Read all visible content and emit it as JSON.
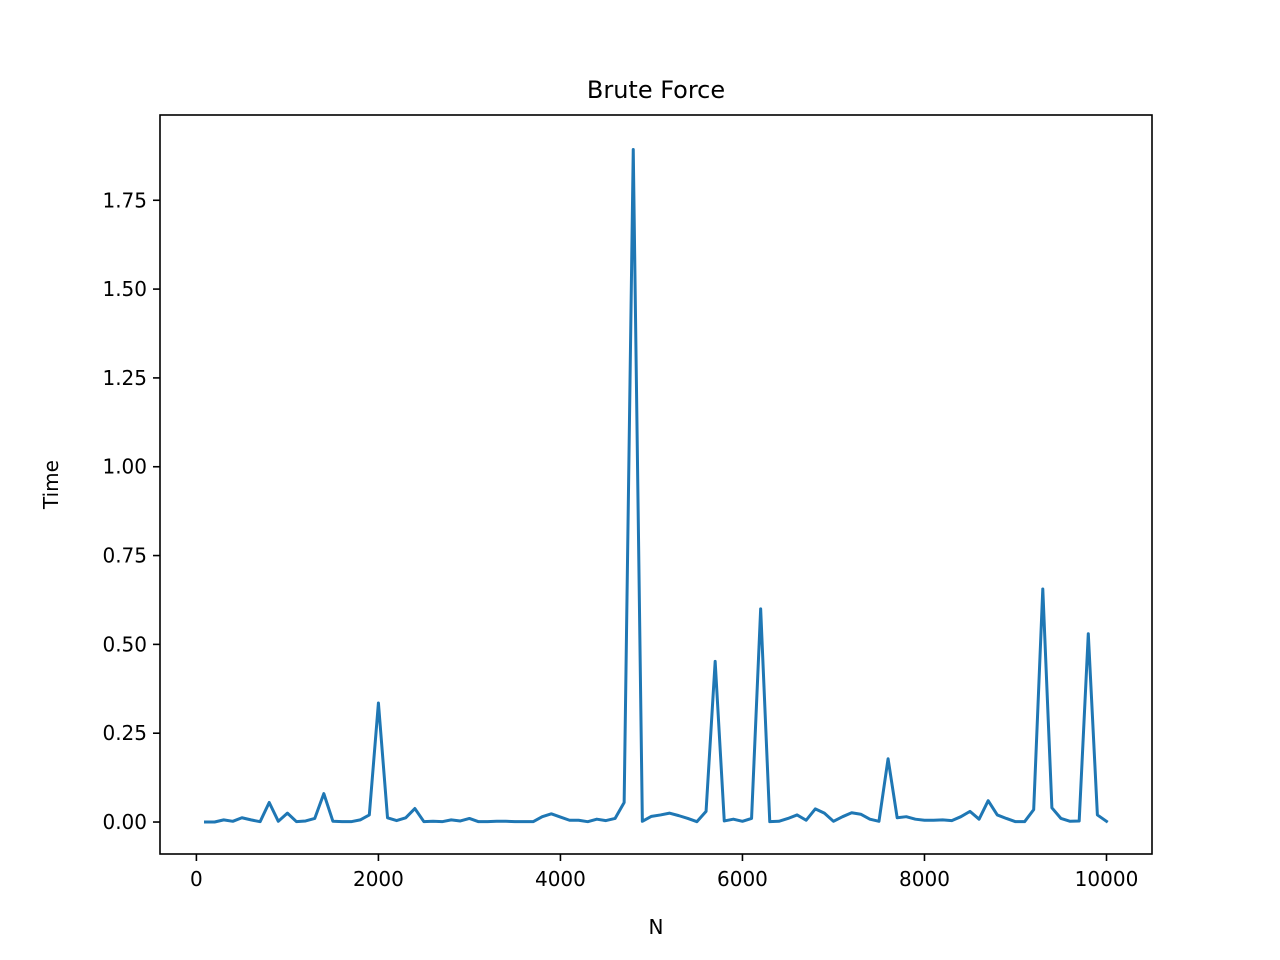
{
  "chart_data": {
    "type": "line",
    "title": "Brute Force",
    "xlabel": "N",
    "ylabel": "Time",
    "xlim": [
      -400,
      10500
    ],
    "ylim": [
      -0.09,
      1.99
    ],
    "xticks": [
      0,
      2000,
      4000,
      6000,
      8000,
      10000
    ],
    "xtick_labels": [
      "0",
      "2000",
      "4000",
      "6000",
      "8000",
      "10000"
    ],
    "yticks": [
      0.0,
      0.25,
      0.5,
      0.75,
      1.0,
      1.25,
      1.5,
      1.75
    ],
    "ytick_labels": [
      "0.00",
      "0.25",
      "0.50",
      "0.75",
      "1.00",
      "1.25",
      "1.50",
      "1.75"
    ],
    "grid": false,
    "series_color": "#1f77b4",
    "x": [
      100,
      200,
      300,
      400,
      500,
      600,
      700,
      800,
      900,
      1000,
      1100,
      1200,
      1300,
      1400,
      1500,
      1600,
      1700,
      1800,
      1900,
      2000,
      2100,
      2200,
      2300,
      2400,
      2500,
      2600,
      2700,
      2800,
      2900,
      3000,
      3100,
      3200,
      3300,
      3400,
      3500,
      3600,
      3700,
      3800,
      3900,
      4000,
      4100,
      4200,
      4300,
      4400,
      4500,
      4600,
      4700,
      4800,
      4900,
      5000,
      5100,
      5200,
      5300,
      5400,
      5500,
      5600,
      5700,
      5800,
      5900,
      6000,
      6100,
      6200,
      6300,
      6400,
      6500,
      6600,
      6700,
      6800,
      6900,
      7000,
      7100,
      7200,
      7300,
      7400,
      7500,
      7600,
      7700,
      7800,
      7900,
      8000,
      8100,
      8200,
      8300,
      8400,
      8500,
      8600,
      8700,
      8800,
      8900,
      9000,
      9100,
      9200,
      9300,
      9400,
      9500,
      9600,
      9700,
      9800,
      9900,
      10000
    ],
    "y": [
      0.0,
      0.0,
      0.006,
      0.002,
      0.012,
      0.006,
      0.001,
      0.055,
      0.002,
      0.025,
      0.001,
      0.003,
      0.01,
      0.08,
      0.002,
      0.001,
      0.001,
      0.006,
      0.02,
      0.335,
      0.012,
      0.004,
      0.012,
      0.038,
      0.001,
      0.002,
      0.001,
      0.006,
      0.003,
      0.01,
      0.001,
      0.001,
      0.002,
      0.002,
      0.001,
      0.001,
      0.001,
      0.015,
      0.023,
      0.014,
      0.005,
      0.005,
      0.001,
      0.008,
      0.004,
      0.01,
      0.055,
      1.893,
      0.002,
      0.016,
      0.02,
      0.025,
      0.018,
      0.01,
      0.001,
      0.03,
      0.452,
      0.003,
      0.008,
      0.002,
      0.01,
      0.6,
      0.001,
      0.002,
      0.01,
      0.02,
      0.005,
      0.037,
      0.025,
      0.002,
      0.015,
      0.026,
      0.022,
      0.008,
      0.002,
      0.178,
      0.012,
      0.015,
      0.008,
      0.005,
      0.005,
      0.006,
      0.004,
      0.015,
      0.03,
      0.008,
      0.06,
      0.02,
      0.01,
      0.001,
      0.001,
      0.035,
      0.656,
      0.04,
      0.01,
      0.002,
      0.003,
      0.53,
      0.02,
      0.002
    ]
  }
}
